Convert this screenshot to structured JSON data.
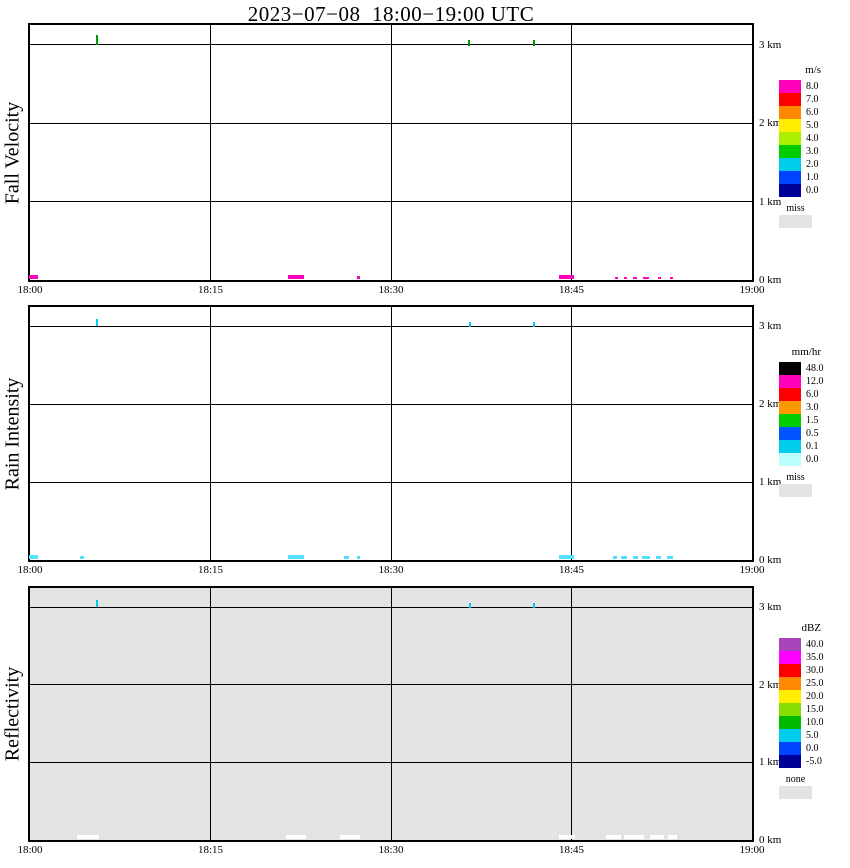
{
  "chart_data": {
    "type": "heatmap",
    "title": "2023−07−08  18:00−19:00 UTC",
    "x_axis": {
      "range_minutes": [
        0,
        60
      ],
      "major_ticks": [
        {
          "minutes": 0,
          "label": "18:00"
        },
        {
          "minutes": 15,
          "label": "18:15"
        },
        {
          "minutes": 30,
          "label": "18:30"
        },
        {
          "minutes": 45,
          "label": "18:45"
        },
        {
          "minutes": 60,
          "label": "19:00"
        }
      ]
    },
    "y_axis": {
      "range_km": [
        0,
        3.25
      ],
      "ticks": [
        {
          "km": 0,
          "label": "0 km"
        },
        {
          "km": 1,
          "label": "1 km"
        },
        {
          "km": 2,
          "label": "2 km"
        },
        {
          "km": 3,
          "label": "3 km"
        }
      ]
    },
    "panels": [
      {
        "ylabel": "Fall Velocity",
        "plot_background": "#ffffff",
        "colorbar": {
          "units": "m/s",
          "entries": [
            {
              "label": "8.0",
              "color": "#ff00bb"
            },
            {
              "label": "7.0",
              "color": "#ff0000"
            },
            {
              "label": "6.0",
              "color": "#ff8800"
            },
            {
              "label": "5.0",
              "color": "#ffee00"
            },
            {
              "label": "4.0",
              "color": "#aaee00"
            },
            {
              "label": "3.0",
              "color": "#00cc00"
            },
            {
              "label": "2.0",
              "color": "#00ccee"
            },
            {
              "label": "1.0",
              "color": "#0044ff"
            },
            {
              "label": "0.0",
              "color": "#000099"
            }
          ],
          "missing": {
            "label": "miss",
            "color": "#e3e3e3"
          }
        },
        "marks": [
          {
            "t": 0.3,
            "km": 0.01,
            "w": 0.7,
            "h": 0.06,
            "color": "#ff00bb"
          },
          {
            "t": 22.1,
            "km": 0.01,
            "w": 1.4,
            "h": 0.06,
            "color": "#ff00bb"
          },
          {
            "t": 27.3,
            "km": 0.01,
            "w": 0.25,
            "h": 0.04,
            "color": "#ff00bb"
          },
          {
            "t": 44.6,
            "km": 0.01,
            "w": 1.2,
            "h": 0.06,
            "color": "#ff00bb"
          },
          {
            "t": 48.7,
            "km": 0.01,
            "w": 0.25,
            "h": 0.03,
            "color": "#ff00bb"
          },
          {
            "t": 49.5,
            "km": 0.01,
            "w": 0.25,
            "h": 0.03,
            "color": "#ff00bb"
          },
          {
            "t": 50.3,
            "km": 0.01,
            "w": 0.3,
            "h": 0.03,
            "color": "#ff00bb"
          },
          {
            "t": 51.2,
            "km": 0.01,
            "w": 0.5,
            "h": 0.03,
            "color": "#ff00bb"
          },
          {
            "t": 52.3,
            "km": 0.01,
            "w": 0.3,
            "h": 0.03,
            "color": "#ff00bb"
          },
          {
            "t": 53.3,
            "km": 0.01,
            "w": 0.3,
            "h": 0.03,
            "color": "#ff00bb"
          },
          {
            "t": 5.6,
            "km": 3.0,
            "w": 0.15,
            "h": 0.12,
            "color": "#009900"
          },
          {
            "t": 36.5,
            "km": 2.98,
            "w": 0.12,
            "h": 0.08,
            "color": "#009900"
          },
          {
            "t": 41.9,
            "km": 2.98,
            "w": 0.12,
            "h": 0.08,
            "color": "#009900"
          }
        ]
      },
      {
        "ylabel": "Rain Intensity",
        "plot_background": "#ffffff",
        "colorbar": {
          "units": "mm/hr",
          "entries": [
            {
              "label": "48.0",
              "color": "#000000"
            },
            {
              "label": "12.0",
              "color": "#ff00bb"
            },
            {
              "label": "6.0",
              "color": "#ff0000"
            },
            {
              "label": "3.0",
              "color": "#ff9900"
            },
            {
              "label": "1.5",
              "color": "#00cc00"
            },
            {
              "label": "0.5",
              "color": "#0055ff"
            },
            {
              "label": "0.1",
              "color": "#00ccee"
            },
            {
              "label": "0.0",
              "color": "#bbffff"
            }
          ],
          "missing": {
            "label": "miss",
            "color": "#e3e3e3"
          }
        },
        "marks": [
          {
            "t": 0.3,
            "km": 0.01,
            "w": 0.7,
            "h": 0.05,
            "color": "#55e0ff"
          },
          {
            "t": 4.3,
            "km": 0.01,
            "w": 0.3,
            "h": 0.04,
            "color": "#55e0ff"
          },
          {
            "t": 22.1,
            "km": 0.01,
            "w": 1.4,
            "h": 0.05,
            "color": "#55e0ff"
          },
          {
            "t": 26.3,
            "km": 0.01,
            "w": 0.4,
            "h": 0.04,
            "color": "#55e0ff"
          },
          {
            "t": 27.3,
            "km": 0.01,
            "w": 0.3,
            "h": 0.04,
            "color": "#55e0ff"
          },
          {
            "t": 44.6,
            "km": 0.01,
            "w": 1.2,
            "h": 0.05,
            "color": "#55e0ff"
          },
          {
            "t": 48.6,
            "km": 0.01,
            "w": 0.3,
            "h": 0.04,
            "color": "#55e0ff"
          },
          {
            "t": 49.4,
            "km": 0.01,
            "w": 0.5,
            "h": 0.04,
            "color": "#55e0ff"
          },
          {
            "t": 50.3,
            "km": 0.01,
            "w": 0.4,
            "h": 0.04,
            "color": "#55e0ff"
          },
          {
            "t": 51.2,
            "km": 0.01,
            "w": 0.6,
            "h": 0.04,
            "color": "#55e0ff"
          },
          {
            "t": 52.2,
            "km": 0.01,
            "w": 0.4,
            "h": 0.04,
            "color": "#55e0ff"
          },
          {
            "t": 53.2,
            "km": 0.01,
            "w": 0.5,
            "h": 0.04,
            "color": "#55e0ff"
          },
          {
            "t": 5.6,
            "km": 3.0,
            "w": 0.15,
            "h": 0.1,
            "color": "#00ccee"
          },
          {
            "t": 36.6,
            "km": 2.99,
            "w": 0.12,
            "h": 0.07,
            "color": "#00ccee"
          },
          {
            "t": 41.9,
            "km": 2.99,
            "w": 0.12,
            "h": 0.07,
            "color": "#00ccee"
          }
        ]
      },
      {
        "ylabel": "Reflectivity",
        "plot_background": "#e3e3e3",
        "colorbar": {
          "units": "dBZ",
          "entries": [
            {
              "label": "40.0",
              "color": "#aa44bb"
            },
            {
              "label": "35.0",
              "color": "#ff00ff"
            },
            {
              "label": "30.0",
              "color": "#ff0000"
            },
            {
              "label": "25.0",
              "color": "#ff8800"
            },
            {
              "label": "20.0",
              "color": "#ffee00"
            },
            {
              "label": "15.0",
              "color": "#88dd00"
            },
            {
              "label": "10.0",
              "color": "#00bb00"
            },
            {
              "label": "5.0",
              "color": "#00ccee"
            },
            {
              "label": "0.0",
              "color": "#0044ff"
            },
            {
              "label": "-5.0",
              "color": "#000099"
            }
          ],
          "missing": {
            "label": "none",
            "color": "#e3e3e3"
          }
        },
        "marks": [
          {
            "t": 4.8,
            "km": 0.01,
            "w": 1.8,
            "h": 0.06,
            "color": "#ffffff"
          },
          {
            "t": 22.1,
            "km": 0.01,
            "w": 1.6,
            "h": 0.06,
            "color": "#ffffff"
          },
          {
            "t": 26.6,
            "km": 0.01,
            "w": 1.7,
            "h": 0.06,
            "color": "#ffffff"
          },
          {
            "t": 44.6,
            "km": 0.01,
            "w": 1.3,
            "h": 0.06,
            "color": "#ffffff"
          },
          {
            "t": 48.5,
            "km": 0.01,
            "w": 1.3,
            "h": 0.06,
            "color": "#ffffff"
          },
          {
            "t": 50.2,
            "km": 0.01,
            "w": 1.6,
            "h": 0.06,
            "color": "#ffffff"
          },
          {
            "t": 52.1,
            "km": 0.01,
            "w": 1.1,
            "h": 0.06,
            "color": "#ffffff"
          },
          {
            "t": 53.4,
            "km": 0.01,
            "w": 0.7,
            "h": 0.06,
            "color": "#ffffff"
          },
          {
            "t": 5.6,
            "km": 3.0,
            "w": 0.15,
            "h": 0.1,
            "color": "#00ccee"
          },
          {
            "t": 36.6,
            "km": 2.99,
            "w": 0.12,
            "h": 0.07,
            "color": "#00ccee"
          },
          {
            "t": 41.9,
            "km": 2.99,
            "w": 0.12,
            "h": 0.07,
            "color": "#00ccee"
          }
        ]
      }
    ]
  }
}
